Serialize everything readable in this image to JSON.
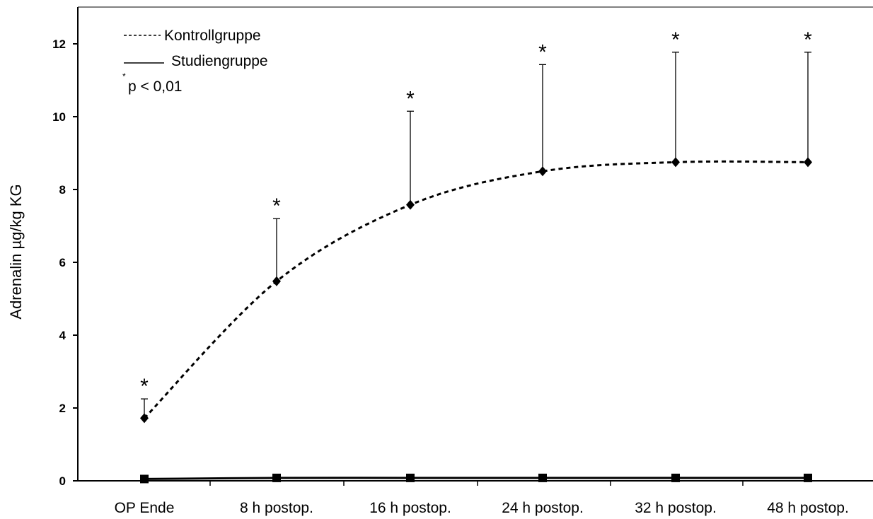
{
  "chart_data": {
    "type": "line",
    "categories": [
      "OP Ende",
      "8 h postop.",
      "16 h postop.",
      "24 h postop.",
      "32 h postop.",
      "48 h postop."
    ],
    "ylabel": "Adrenalin µg/kg KG",
    "xlabel": "",
    "ylim": [
      0,
      13
    ],
    "yticks": [
      0,
      2,
      4,
      6,
      8,
      10,
      12
    ],
    "grid": false,
    "legend_position": "top-left",
    "series": [
      {
        "name": "Kontrollgruppe",
        "line_style": "dashed",
        "marker": "diamond",
        "values": [
          1.72,
          5.48,
          7.58,
          8.5,
          8.75,
          8.75
        ],
        "error_upper": [
          2.25,
          7.2,
          10.15,
          11.43,
          11.77,
          11.77
        ]
      },
      {
        "name": "Studiengruppe",
        "line_style": "solid",
        "marker": "square",
        "values": [
          0.05,
          0.08,
          0.08,
          0.08,
          0.08,
          0.08
        ]
      }
    ],
    "significance_marks": [
      "*",
      "*",
      "*",
      "*",
      "*",
      "*"
    ],
    "annotation": {
      "superscript": "*",
      "text": "p < 0,01"
    },
    "colors": {
      "line": "#000000",
      "background": "#ffffff"
    }
  }
}
